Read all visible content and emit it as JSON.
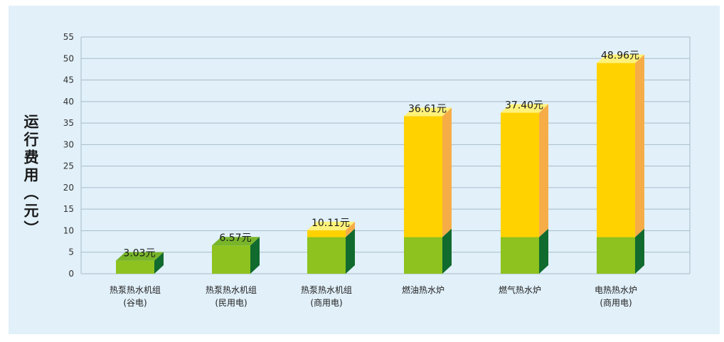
{
  "chart_data": {
    "type": "bar",
    "ylabel": "运行费用（元）",
    "ylim": [
      0,
      55
    ],
    "yticks": [
      0,
      5,
      10,
      15,
      20,
      25,
      30,
      35,
      40,
      45,
      50,
      55
    ],
    "grid": true,
    "categories": [
      [
        "热泵热水机组",
        "(谷电)"
      ],
      [
        "热泵热水机组",
        "(民用电)"
      ],
      [
        "热泵热水机组",
        "(商用电)"
      ],
      [
        "燃油热水炉"
      ],
      [
        "燃气热水炉"
      ],
      [
        "电热热水炉",
        "(商用电)"
      ]
    ],
    "values": [
      3.03,
      6.57,
      10.11,
      36.61,
      37.4,
      48.96
    ],
    "data_labels": [
      "3.03元",
      "6.57元",
      "10.11元",
      "36.61元",
      "37.40元",
      "48.96元"
    ],
    "colors": {
      "green_front": "#8dc21f",
      "green_top": "#78b52a",
      "green_side": "#116b2e",
      "yellow_front": "#ffd200",
      "yellow_top": "#fff27a",
      "yellow_side": "#f6ad48",
      "grid": "#a9bdc9",
      "background": "#e1f0f9"
    }
  }
}
